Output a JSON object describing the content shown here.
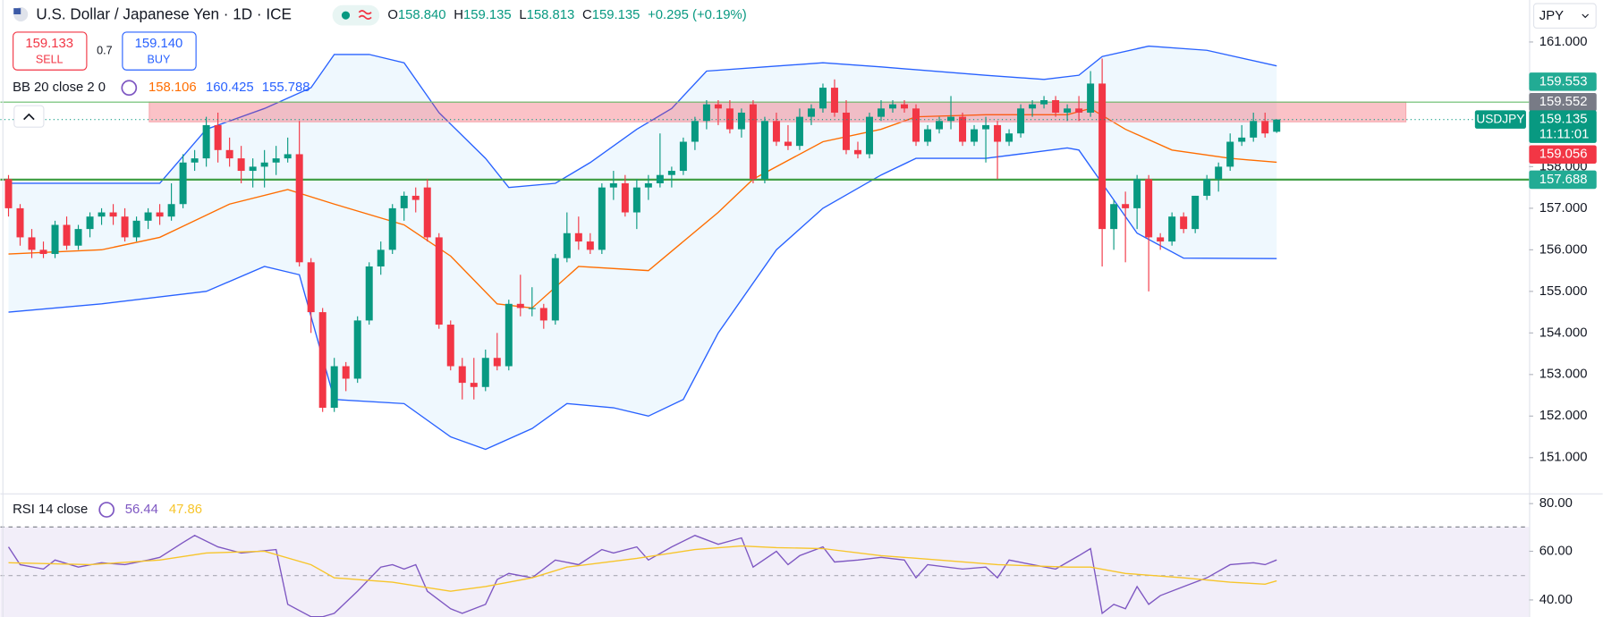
{
  "ui": {
    "title": "U.S. Dollar / Japanese Yen · 1D · ICE",
    "ohlc": [
      {
        "key": "O",
        "value": "158.840"
      },
      {
        "key": "H",
        "value": "159.135"
      },
      {
        "key": "L",
        "value": "158.813"
      },
      {
        "key": "C",
        "value": "159.135"
      }
    ],
    "change": "+0.295 (+0.19%)",
    "sell_price": "159.133",
    "sell": "SELL",
    "spread": "0.7",
    "buy_price": "159.140",
    "buy": "BUY",
    "currency": "JPY",
    "bb_label": "BB 20 close 2 0",
    "bb_values": [
      "158.106",
      "160.425",
      "155.788"
    ],
    "rsi_label": "RSI 14 close",
    "rsi_values": [
      "56.44",
      "47.86"
    ]
  },
  "chart_data": {
    "type": "candlestick",
    "ylim": [
      150.14,
      162.01
    ],
    "yticks": [
      {
        "value": 161,
        "label": "161.000"
      },
      {
        "value": 160,
        "label": "160.000"
      },
      {
        "value": 159,
        "label": "159.000"
      },
      {
        "value": 158,
        "label": "158.000"
      },
      {
        "value": 157,
        "label": "157.000"
      },
      {
        "value": 156,
        "label": "156.000"
      },
      {
        "value": 155,
        "label": "155.000"
      },
      {
        "value": 154,
        "label": "154.000"
      },
      {
        "value": 153,
        "label": "153.000"
      },
      {
        "value": 152,
        "label": "152.000"
      },
      {
        "value": 151,
        "label": "151.000"
      }
    ],
    "up_color": "#089981",
    "down_color": "#f23645",
    "candles": [
      [
        157.7,
        157.8,
        156.8,
        157.0
      ],
      [
        157.0,
        157.1,
        156.1,
        156.3
      ],
      [
        156.3,
        156.5,
        155.8,
        156.0
      ],
      [
        156.0,
        156.2,
        155.8,
        155.9
      ],
      [
        155.9,
        156.7,
        155.8,
        156.6
      ],
      [
        156.6,
        156.8,
        156.0,
        156.1
      ],
      [
        156.1,
        156.6,
        156.0,
        156.5
      ],
      [
        156.5,
        156.9,
        156.3,
        156.8
      ],
      [
        156.8,
        157.0,
        156.6,
        156.9
      ],
      [
        156.9,
        157.1,
        156.6,
        156.8
      ],
      [
        156.8,
        157.0,
        156.2,
        156.3
      ],
      [
        156.3,
        156.8,
        156.2,
        156.7
      ],
      [
        156.7,
        157.0,
        156.5,
        156.9
      ],
      [
        156.9,
        157.1,
        156.6,
        156.8
      ],
      [
        156.8,
        157.6,
        156.7,
        157.1
      ],
      [
        157.1,
        158.3,
        157.0,
        158.1
      ],
      [
        158.1,
        158.4,
        157.9,
        158.2
      ],
      [
        158.2,
        159.2,
        158.0,
        159.0
      ],
      [
        159.0,
        159.3,
        158.1,
        158.4
      ],
      [
        158.4,
        158.7,
        158.0,
        158.2
      ],
      [
        158.2,
        158.5,
        157.6,
        157.9
      ],
      [
        157.9,
        158.2,
        157.5,
        158.0
      ],
      [
        158.0,
        158.4,
        157.5,
        158.1
      ],
      [
        158.1,
        158.5,
        157.8,
        158.2
      ],
      [
        158.2,
        158.7,
        158.1,
        158.3
      ],
      [
        158.3,
        159.1,
        155.6,
        155.7
      ],
      [
        155.7,
        155.8,
        154.0,
        154.5
      ],
      [
        154.5,
        154.6,
        152.1,
        152.2
      ],
      [
        152.2,
        153.4,
        152.1,
        153.2
      ],
      [
        153.2,
        153.3,
        152.6,
        152.9
      ],
      [
        152.9,
        154.4,
        152.8,
        154.3
      ],
      [
        154.3,
        155.7,
        154.2,
        155.6
      ],
      [
        155.6,
        156.2,
        155.4,
        156.0
      ],
      [
        156.0,
        157.1,
        155.9,
        157.0
      ],
      [
        157.0,
        157.4,
        156.7,
        157.3
      ],
      [
        157.3,
        157.5,
        156.9,
        157.2
      ],
      [
        157.5,
        157.7,
        156.2,
        156.3
      ],
      [
        156.3,
        156.4,
        154.1,
        154.2
      ],
      [
        154.2,
        154.3,
        153.1,
        153.2
      ],
      [
        153.2,
        153.4,
        152.4,
        152.8
      ],
      [
        152.8,
        153.4,
        152.4,
        152.7
      ],
      [
        152.7,
        153.6,
        152.6,
        153.4
      ],
      [
        153.4,
        154.0,
        153.1,
        153.2
      ],
      [
        153.2,
        154.8,
        153.1,
        154.7
      ],
      [
        154.7,
        155.4,
        154.4,
        154.6
      ],
      [
        154.6,
        155.1,
        154.4,
        154.6
      ],
      [
        154.6,
        154.7,
        154.1,
        154.3
      ],
      [
        154.3,
        155.9,
        154.2,
        155.8
      ],
      [
        155.8,
        156.9,
        155.7,
        156.4
      ],
      [
        156.4,
        156.8,
        156.0,
        156.2
      ],
      [
        156.2,
        156.4,
        155.9,
        156.0
      ],
      [
        156.0,
        157.6,
        155.9,
        157.5
      ],
      [
        157.5,
        157.9,
        157.2,
        157.6
      ],
      [
        157.6,
        157.8,
        156.8,
        156.9
      ],
      [
        156.9,
        157.7,
        156.5,
        157.5
      ],
      [
        157.5,
        157.8,
        157.2,
        157.6
      ],
      [
        157.6,
        158.8,
        157.5,
        157.8
      ],
      [
        157.8,
        158.0,
        157.5,
        157.9
      ],
      [
        157.9,
        158.7,
        157.8,
        158.6
      ],
      [
        158.6,
        159.2,
        158.4,
        159.1
      ],
      [
        159.1,
        159.6,
        158.9,
        159.5
      ],
      [
        159.5,
        159.6,
        159.0,
        159.4
      ],
      [
        159.4,
        159.6,
        158.8,
        158.9
      ],
      [
        158.9,
        159.4,
        158.7,
        159.3
      ],
      [
        159.5,
        159.6,
        157.6,
        157.7
      ],
      [
        157.7,
        159.2,
        157.6,
        159.1
      ],
      [
        159.1,
        159.3,
        158.5,
        158.6
      ],
      [
        158.6,
        159.0,
        158.4,
        158.5
      ],
      [
        158.5,
        159.4,
        158.4,
        159.2
      ],
      [
        159.2,
        159.5,
        159.0,
        159.4
      ],
      [
        159.4,
        160.0,
        159.3,
        159.9
      ],
      [
        159.9,
        160.1,
        159.2,
        159.3
      ],
      [
        159.3,
        159.6,
        158.3,
        158.4
      ],
      [
        158.4,
        158.6,
        158.2,
        158.3
      ],
      [
        158.3,
        159.3,
        158.2,
        159.2
      ],
      [
        159.2,
        159.6,
        159.1,
        159.4
      ],
      [
        159.4,
        159.6,
        159.3,
        159.5
      ],
      [
        159.5,
        159.6,
        159.3,
        159.4
      ],
      [
        159.4,
        159.5,
        158.5,
        158.6
      ],
      [
        158.6,
        159.0,
        158.5,
        158.9
      ],
      [
        158.9,
        159.2,
        158.8,
        159.1
      ],
      [
        159.1,
        159.7,
        158.9,
        159.2
      ],
      [
        159.2,
        159.3,
        158.5,
        158.6
      ],
      [
        158.6,
        159.0,
        158.5,
        158.9
      ],
      [
        158.9,
        159.2,
        158.1,
        159.0
      ],
      [
        159.0,
        159.1,
        157.7,
        158.6
      ],
      [
        158.6,
        158.9,
        158.5,
        158.8
      ],
      [
        158.8,
        159.5,
        158.7,
        159.4
      ],
      [
        159.4,
        159.6,
        159.2,
        159.5
      ],
      [
        159.5,
        159.7,
        159.4,
        159.6
      ],
      [
        159.6,
        159.7,
        159.2,
        159.3
      ],
      [
        159.3,
        159.5,
        159.1,
        159.4
      ],
      [
        159.4,
        159.7,
        159.1,
        159.3
      ],
      [
        159.3,
        160.3,
        159.2,
        160.0
      ],
      [
        160.0,
        160.6,
        155.6,
        156.5
      ],
      [
        156.5,
        157.2,
        156.0,
        157.1
      ],
      [
        157.1,
        157.4,
        155.7,
        157.0
      ],
      [
        157.0,
        157.8,
        156.5,
        157.7
      ],
      [
        157.7,
        157.8,
        155.0,
        156.3
      ],
      [
        156.3,
        156.4,
        156.0,
        156.2
      ],
      [
        156.2,
        156.9,
        156.1,
        156.8
      ],
      [
        156.8,
        156.9,
        156.4,
        156.5
      ],
      [
        156.5,
        157.3,
        156.4,
        157.3
      ],
      [
        157.3,
        157.8,
        157.2,
        157.7
      ],
      [
        157.7,
        158.1,
        157.4,
        158.0
      ],
      [
        158.0,
        158.8,
        157.9,
        158.6
      ],
      [
        158.6,
        159.0,
        158.5,
        158.7
      ],
      [
        158.7,
        159.3,
        158.6,
        159.1
      ],
      [
        159.1,
        159.3,
        158.7,
        158.8
      ],
      [
        158.84,
        159.135,
        158.813,
        159.135
      ]
    ],
    "bb_upper": {
      "color": "#2962ff",
      "x": [
        0,
        13,
        17,
        22,
        26,
        28,
        31,
        34,
        37,
        41,
        43,
        47,
        50,
        54,
        57,
        60,
        65,
        70,
        75,
        84,
        89,
        92,
        94,
        98,
        103,
        109
      ],
      "values": [
        157.6,
        157.6,
        158.9,
        159.4,
        159.9,
        160.7,
        160.7,
        160.5,
        159.3,
        158.2,
        157.5,
        157.6,
        158.1,
        158.9,
        159.4,
        160.3,
        160.4,
        160.5,
        160.4,
        160.2,
        160.1,
        160.2,
        160.65,
        160.9,
        160.8,
        160.425
      ]
    },
    "bb_lower": {
      "color": "#2962ff",
      "x": [
        0,
        8,
        17,
        22,
        25,
        28,
        34,
        38,
        41,
        45,
        48,
        52,
        55,
        58,
        61,
        66,
        70,
        75,
        78,
        84,
        91,
        92,
        95,
        97,
        101,
        109
      ],
      "values": [
        154.5,
        154.7,
        155.0,
        155.6,
        155.4,
        152.4,
        152.3,
        151.5,
        151.2,
        151.7,
        152.3,
        152.2,
        152.0,
        152.4,
        154.0,
        156.0,
        157.0,
        157.8,
        158.2,
        158.2,
        158.45,
        158.4,
        157.2,
        156.4,
        155.8,
        155.788
      ]
    },
    "bb_basis": {
      "color": "#ff6d00",
      "x": [
        0,
        8,
        13,
        19,
        24,
        28,
        34,
        38,
        42,
        45,
        49,
        55,
        61,
        64,
        70,
        75,
        78,
        84,
        91,
        93,
        96,
        100,
        105,
        109
      ],
      "values": [
        155.9,
        156.0,
        156.3,
        157.1,
        157.45,
        157.1,
        156.6,
        155.85,
        154.7,
        154.6,
        155.6,
        155.5,
        156.9,
        157.7,
        158.6,
        158.9,
        159.2,
        159.25,
        159.25,
        159.4,
        158.9,
        158.4,
        158.2,
        158.106
      ]
    },
    "band_fill": "rgba(33,150,243,0.07)",
    "zone": {
      "from": 159.08,
      "to": 159.553,
      "xrange": [
        12.1,
        120.1
      ],
      "color": "rgba(242,54,69,0.3)",
      "edge": "#f7a9b0"
    },
    "hlines": [
      {
        "value": 157.688,
        "color": "#43a047",
        "width": 2
      },
      {
        "value": 159.553,
        "color": "#66bb6a",
        "width": 1
      }
    ],
    "price_labels": [
      {
        "value": 159.553,
        "label": "159.553",
        "color": "#22ab94"
      },
      {
        "value": 159.552,
        "label": "159.552",
        "color": "#787b86"
      },
      {
        "value": 159.135,
        "label": "159.135",
        "color": "#089981"
      },
      {
        "value": 159.056,
        "label": "159.056",
        "color": "#f23645"
      },
      {
        "value": 157.688,
        "label": "157.688",
        "color": "#22ab94"
      }
    ],
    "symbol": "USDJPY",
    "countdown": "11:11:01",
    "rsi": {
      "ylim": [
        33,
        80
      ],
      "yticks": [
        {
          "value": 80,
          "label": "80.00"
        },
        {
          "value": 60,
          "label": "60.00"
        },
        {
          "value": 40,
          "label": "40.00"
        }
      ],
      "band": [
        70,
        30
      ],
      "midline": 50,
      "series": [
        {
          "color": "#7e57c2",
          "x": [
            0,
            1,
            3,
            4,
            6,
            8,
            10,
            12,
            13,
            15,
            16,
            18,
            20,
            23,
            24,
            26,
            27,
            28,
            30,
            32,
            33,
            34,
            35,
            36,
            38,
            39,
            41,
            42,
            43,
            45,
            47,
            49,
            51,
            52,
            54,
            55,
            57,
            59,
            61,
            63,
            64,
            66,
            67,
            68,
            70,
            71,
            73,
            75,
            77,
            78,
            79,
            82,
            84,
            85,
            86,
            88,
            90,
            92,
            93,
            94,
            95,
            96,
            97,
            98,
            99,
            101,
            103,
            105,
            107,
            108,
            109
          ],
          "values": [
            61.8,
            54.5,
            52.7,
            56.4,
            53.5,
            55.3,
            54.5,
            56.4,
            57.5,
            63.6,
            66.5,
            61.8,
            59.3,
            60.7,
            38.2,
            33.1,
            33.1,
            34.5,
            43.6,
            53.5,
            54.5,
            52.7,
            54.5,
            43.6,
            36.4,
            34.5,
            38.2,
            48.4,
            50.9,
            49.1,
            56.4,
            54.5,
            60.7,
            59.3,
            61.8,
            56.4,
            61.8,
            66.5,
            62.9,
            65.5,
            53.5,
            60.0,
            54.5,
            58.2,
            61.8,
            55.6,
            56.4,
            57.5,
            56.4,
            49.1,
            54.5,
            52.7,
            53.5,
            49.1,
            56.4,
            54.5,
            52.7,
            58.2,
            61.1,
            34.5,
            38.2,
            36.4,
            45.5,
            38.2,
            41.8,
            45.5,
            49.1,
            54.5,
            55.3,
            54.5,
            56.44
          ]
        },
        {
          "color": "#f7c52b",
          "x": [
            0,
            7,
            13,
            17,
            22,
            26,
            28,
            33,
            38,
            41,
            45,
            48,
            54,
            59,
            63,
            66,
            70,
            75,
            80,
            85,
            91,
            93,
            96,
            101,
            105,
            108,
            109
          ],
          "values": [
            55.3,
            54.5,
            56.4,
            59.3,
            60.0,
            54.5,
            49.1,
            47.3,
            43.6,
            45.5,
            49.1,
            53.5,
            57.1,
            60.7,
            62.2,
            61.5,
            61.1,
            58.2,
            56.4,
            54.5,
            53.5,
            53.5,
            50.9,
            49.1,
            47.3,
            46.5,
            47.86
          ]
        }
      ],
      "band_fill": "rgba(126,87,194,0.1)"
    }
  }
}
